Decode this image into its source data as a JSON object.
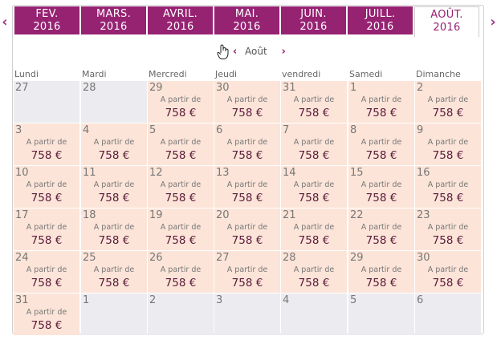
{
  "arrows": {
    "prev": "‹",
    "next": "›"
  },
  "tabs": [
    {
      "month": "FEV.",
      "year": "2016",
      "active": false
    },
    {
      "month": "MARS.",
      "year": "2016",
      "active": false
    },
    {
      "month": "AVRIL.",
      "year": "2016",
      "active": false
    },
    {
      "month": "MAI.",
      "year": "2016",
      "active": false
    },
    {
      "month": "JUIN.",
      "year": "2016",
      "active": false
    },
    {
      "month": "JUILL.",
      "year": "2016",
      "active": false
    },
    {
      "month": "AOÛT.",
      "year": "2016",
      "active": true
    }
  ],
  "nav": {
    "prev": "‹",
    "month": "Août",
    "next": "›"
  },
  "weekdays": [
    "Lundi",
    "Mardi",
    "Mercredi",
    "Jeudi",
    "vendredi",
    "Samedi",
    "Dimanche"
  ],
  "calendar": {
    "from_label": "A partir de",
    "price_label": "758 €",
    "days": [
      {
        "n": "27",
        "priced": false
      },
      {
        "n": "28",
        "priced": false
      },
      {
        "n": "29",
        "priced": true
      },
      {
        "n": "30",
        "priced": true
      },
      {
        "n": "31",
        "priced": true
      },
      {
        "n": "1",
        "priced": true
      },
      {
        "n": "2",
        "priced": true
      },
      {
        "n": "3",
        "priced": true
      },
      {
        "n": "4",
        "priced": true
      },
      {
        "n": "5",
        "priced": true
      },
      {
        "n": "6",
        "priced": true
      },
      {
        "n": "7",
        "priced": true
      },
      {
        "n": "8",
        "priced": true
      },
      {
        "n": "9",
        "priced": true
      },
      {
        "n": "10",
        "priced": true
      },
      {
        "n": "11",
        "priced": true
      },
      {
        "n": "12",
        "priced": true
      },
      {
        "n": "13",
        "priced": true
      },
      {
        "n": "14",
        "priced": true
      },
      {
        "n": "15",
        "priced": true
      },
      {
        "n": "16",
        "priced": true
      },
      {
        "n": "17",
        "priced": true
      },
      {
        "n": "18",
        "priced": true
      },
      {
        "n": "19",
        "priced": true
      },
      {
        "n": "20",
        "priced": true
      },
      {
        "n": "21",
        "priced": true
      },
      {
        "n": "22",
        "priced": true
      },
      {
        "n": "23",
        "priced": true
      },
      {
        "n": "24",
        "priced": true
      },
      {
        "n": "25",
        "priced": true
      },
      {
        "n": "26",
        "priced": true
      },
      {
        "n": "27",
        "priced": true
      },
      {
        "n": "28",
        "priced": true
      },
      {
        "n": "29",
        "priced": true
      },
      {
        "n": "30",
        "priced": true
      },
      {
        "n": "31",
        "priced": true
      },
      {
        "n": "1",
        "priced": false
      },
      {
        "n": "2",
        "priced": false
      },
      {
        "n": "3",
        "priced": false
      },
      {
        "n": "4",
        "priced": false
      },
      {
        "n": "5",
        "priced": false
      },
      {
        "n": "6",
        "priced": false
      }
    ]
  },
  "colors": {
    "accent": "#962272",
    "priced_cell": "#fce4d8",
    "off_cell": "#ececf0"
  }
}
